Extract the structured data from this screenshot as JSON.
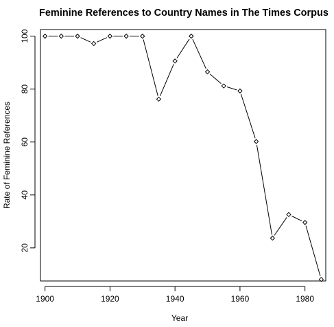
{
  "chart_data": {
    "type": "line",
    "title": "Feminine References to Country Names in The Times Corpus",
    "xlabel": "Year",
    "ylabel": "Rate of Feminine References",
    "xlim": [
      1898.6,
      1986.4
    ],
    "ylim": [
      7.5,
      102.5
    ],
    "xticks": [
      1900,
      1920,
      1940,
      1960,
      1980
    ],
    "yticks": [
      20,
      40,
      60,
      80,
      100
    ],
    "marker": "diamond",
    "grid": false,
    "series": [
      {
        "x": [
          1900,
          1905,
          1910,
          1915,
          1920,
          1925,
          1930,
          1935,
          1940,
          1945,
          1950,
          1955,
          1960,
          1965,
          1970,
          1975,
          1980,
          1985
        ],
        "y": [
          100,
          100,
          100,
          97.2,
          100,
          100,
          100,
          76.2,
          90.6,
          100,
          86.5,
          81.2,
          79.3,
          60.2,
          23.7,
          32.6,
          29.6,
          8.1
        ]
      }
    ]
  }
}
